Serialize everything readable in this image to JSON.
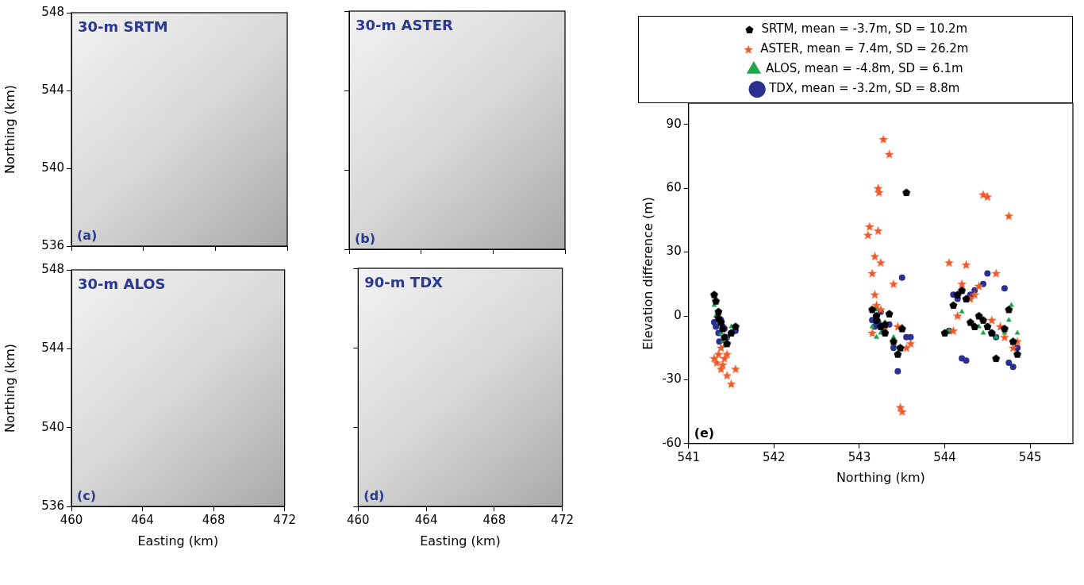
{
  "chart_data": [
    {
      "type": "image",
      "title": "30-m SRTM",
      "panel_label": "(a)",
      "ylabel": "Northing (km)",
      "xlim": [
        460,
        472
      ],
      "xticks": [
        460,
        464,
        468,
        472
      ],
      "ylim": [
        536,
        548
      ],
      "yticks": [
        536,
        540,
        544,
        548
      ],
      "tick_labels": "y"
    },
    {
      "type": "image",
      "title": "30-m ASTER",
      "panel_label": "(b)",
      "xlim": [
        460,
        472
      ],
      "xticks": [
        460,
        464,
        468,
        472
      ],
      "ylim": [
        536,
        548
      ],
      "yticks": [
        536,
        540,
        544,
        548
      ],
      "tick_labels": false
    },
    {
      "type": "image",
      "title": "30-m ALOS",
      "panel_label": "(c)",
      "xlabel": "Easting (km)",
      "ylabel": "Northing (km)",
      "xlim": [
        460,
        472
      ],
      "xticks": [
        460,
        464,
        468,
        472
      ],
      "ylim": [
        536,
        548
      ],
      "yticks": [
        536,
        540,
        544,
        548
      ]
    },
    {
      "type": "image",
      "title": "90-m TDX",
      "panel_label": "(d)",
      "xlabel": "Easting (km)",
      "xlim": [
        460,
        472
      ],
      "xticks": [
        460,
        464,
        468,
        472
      ],
      "ylim": [
        536,
        548
      ],
      "yticks": [
        536,
        540,
        544,
        548
      ],
      "tick_labels": "x"
    },
    {
      "type": "scatter",
      "panel_label": "(e)",
      "xlabel": "Northing (km)",
      "ylabel": "Elevation difference (m)",
      "xlim": [
        541,
        545.5
      ],
      "xticks": [
        541,
        542,
        543,
        544,
        545
      ],
      "ylim": [
        -60,
        100
      ],
      "yticks": [
        -60,
        -30,
        0,
        30,
        60,
        90
      ],
      "legend": "top",
      "series": [
        {
          "name": "SRTM, mean = -3.7m, SD = 10.2m",
          "color": "#000000",
          "marker": "pentagon",
          "x": [
            541.3,
            541.32,
            541.35,
            541.38,
            541.4,
            541.42,
            541.45,
            541.5,
            541.55,
            541.35,
            543.15,
            543.2,
            543.25,
            543.3,
            543.35,
            543.4,
            543.45,
            543.48,
            543.5,
            543.55,
            543.2,
            543.3,
            544.1,
            544.15,
            544.2,
            544.25,
            544.3,
            544.35,
            544.4,
            544.45,
            544.5,
            544.55,
            544.6,
            544.7,
            544.75,
            544.8,
            544.85,
            544.0
          ],
          "values": [
            10,
            7,
            2,
            -3,
            -6,
            -10,
            -13,
            -8,
            -5,
            -1,
            3,
            -2,
            -5,
            -8,
            1,
            -12,
            -18,
            -15,
            -6,
            58,
            0,
            -4,
            5,
            10,
            12,
            8,
            -3,
            -5,
            0,
            -2,
            -5,
            -8,
            -20,
            -6,
            3,
            -12,
            -18,
            -8
          ]
        },
        {
          "name": "ASTER, mean = 7.4m, SD = 26.2m",
          "color": "#f05a28",
          "marker": "star",
          "x": [
            541.3,
            541.33,
            541.35,
            541.38,
            541.4,
            541.42,
            541.45,
            541.5,
            541.55,
            541.38,
            541.45,
            543.1,
            543.12,
            543.15,
            543.18,
            543.2,
            543.22,
            543.22,
            543.23,
            543.2,
            543.25,
            543.28,
            543.35,
            543.3,
            543.4,
            543.45,
            543.48,
            543.5,
            543.55,
            543.6,
            543.18,
            543.15,
            543.25,
            544.05,
            544.1,
            544.2,
            544.25,
            544.3,
            544.35,
            544.4,
            544.45,
            544.5,
            544.55,
            544.6,
            544.7,
            544.75,
            544.8,
            544.85,
            544.65,
            544.15
          ],
          "values": [
            -20,
            -22,
            -18,
            -25,
            -23,
            -20,
            -28,
            -32,
            -25,
            -15,
            -18,
            38,
            42,
            20,
            10,
            5,
            40,
            60,
            58,
            -2,
            25,
            83,
            76,
            -5,
            15,
            -5,
            -43,
            -45,
            -15,
            -13,
            28,
            -8,
            3,
            25,
            -7,
            15,
            24,
            8,
            10,
            14,
            57,
            56,
            -2,
            20,
            -10,
            47,
            -15,
            -12,
            -5,
            0
          ]
        },
        {
          "name": "ALOS, mean = -4.8m, SD = 6.1m",
          "color": "#1ca84a",
          "marker": "triangle",
          "x": [
            541.3,
            541.32,
            541.35,
            541.38,
            541.4,
            541.42,
            541.45,
            541.5,
            543.15,
            543.2,
            543.25,
            543.3,
            543.35,
            543.4,
            543.45,
            543.5,
            543.2,
            544.05,
            544.15,
            544.2,
            544.3,
            544.35,
            544.4,
            544.45,
            544.5,
            544.6,
            544.7,
            544.75,
            544.78,
            544.8,
            544.85
          ],
          "values": [
            5,
            0,
            -3,
            -8,
            -12,
            -14,
            -10,
            -5,
            -5,
            -10,
            -8,
            -3,
            0,
            -10,
            -15,
            -5,
            3,
            -7,
            0,
            2,
            -3,
            -6,
            -5,
            -8,
            -5,
            -10,
            -8,
            -2,
            5,
            -12,
            -8
          ]
        },
        {
          "name": "TDX, mean = -3.2m, SD = 8.8m",
          "color": "#2b2f8f",
          "marker": "circle",
          "x": [
            541.3,
            541.32,
            541.35,
            541.38,
            541.4,
            541.42,
            541.45,
            541.5,
            541.55,
            541.36,
            543.15,
            543.18,
            543.2,
            543.22,
            543.25,
            543.28,
            543.3,
            543.35,
            543.4,
            543.45,
            543.5,
            543.55,
            543.2,
            543.6,
            544.05,
            544.1,
            544.15,
            544.2,
            544.25,
            544.3,
            544.35,
            544.45,
            544.5,
            544.55,
            544.6,
            544.7,
            544.75,
            544.8,
            544.85
          ],
          "values": [
            -3,
            -5,
            -8,
            -2,
            -5,
            -6,
            -10,
            -8,
            -7,
            -12,
            -2,
            -5,
            0,
            -3,
            2,
            -6,
            -8,
            -4,
            -15,
            -26,
            18,
            -10,
            -4,
            -10,
            -7,
            10,
            8,
            -20,
            -21,
            10,
            12,
            15,
            20,
            -8,
            -10,
            13,
            -22,
            -24,
            -15
          ]
        }
      ]
    }
  ]
}
